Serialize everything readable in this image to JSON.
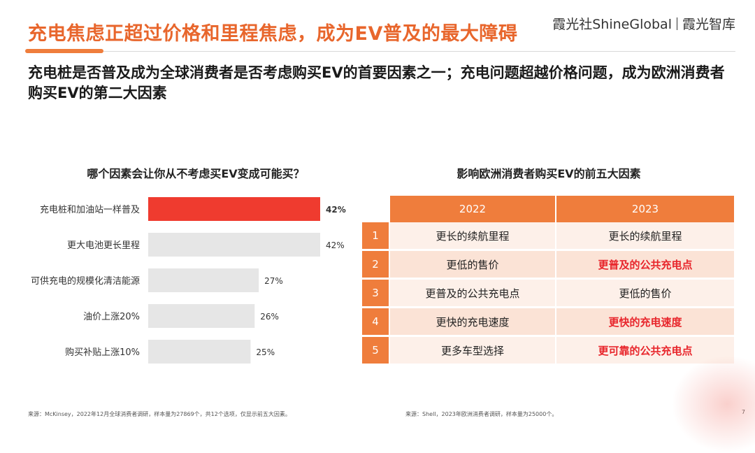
{
  "header": {
    "title": "充电焦虑正超过价格和里程焦虑，成为EV普及的最大障碍",
    "brand_left": "霞光社ShineGlobal",
    "brand_right": "霞光智库"
  },
  "subtitle": "充电桩是否普及成为全球消费者是否考虑购买EV的首要因素之一；充电问题超越价格问题，成为欧洲消费者购买EV的第二大因素",
  "chart_data": {
    "type": "bar",
    "orientation": "horizontal",
    "title": "哪个因素会让你从不考虑买EV变成可能买？",
    "categories": [
      "充电桩和加油站一样普及",
      "更大电池更长里程",
      "可供充电的规模化清洁能源",
      "油价上涨20%",
      "购买补贴上涨10%"
    ],
    "values": [
      42,
      42,
      27,
      26,
      25
    ],
    "value_labels": [
      "42%",
      "42%",
      "27%",
      "26%",
      "25%"
    ],
    "highlight_index": 0,
    "colors": {
      "highlight": "#ef3b2f",
      "default": "#e6e6e6"
    },
    "xlim": [
      0,
      42
    ]
  },
  "table": {
    "title": "影响欧洲消费者购买EV的前五大因素",
    "headers": [
      "2022",
      "2023"
    ],
    "rows": [
      {
        "rank": "1",
        "y2022": "更长的续航里程",
        "y2023": "更长的续航里程",
        "highlight": false
      },
      {
        "rank": "2",
        "y2022": "更低的售价",
        "y2023": "更普及的公共充电点",
        "highlight": true
      },
      {
        "rank": "3",
        "y2022": "更普及的公共充电点",
        "y2023": "更低的售价",
        "highlight": false
      },
      {
        "rank": "4",
        "y2022": "更快的充电速度",
        "y2023": "更快的充电速度",
        "highlight": true
      },
      {
        "rank": "5",
        "y2022": "更多车型选择",
        "y2023": "更可靠的公共充电点",
        "highlight": true
      }
    ]
  },
  "sources": {
    "left": "来源：McKinsey，2022年12月全球消费者调研，样本量为27869个，共12个选项，仅显示前五大因素。",
    "right": "来源：Shell，2023年欧洲消费者调研，样本量为25000个。"
  },
  "page_number": "7"
}
